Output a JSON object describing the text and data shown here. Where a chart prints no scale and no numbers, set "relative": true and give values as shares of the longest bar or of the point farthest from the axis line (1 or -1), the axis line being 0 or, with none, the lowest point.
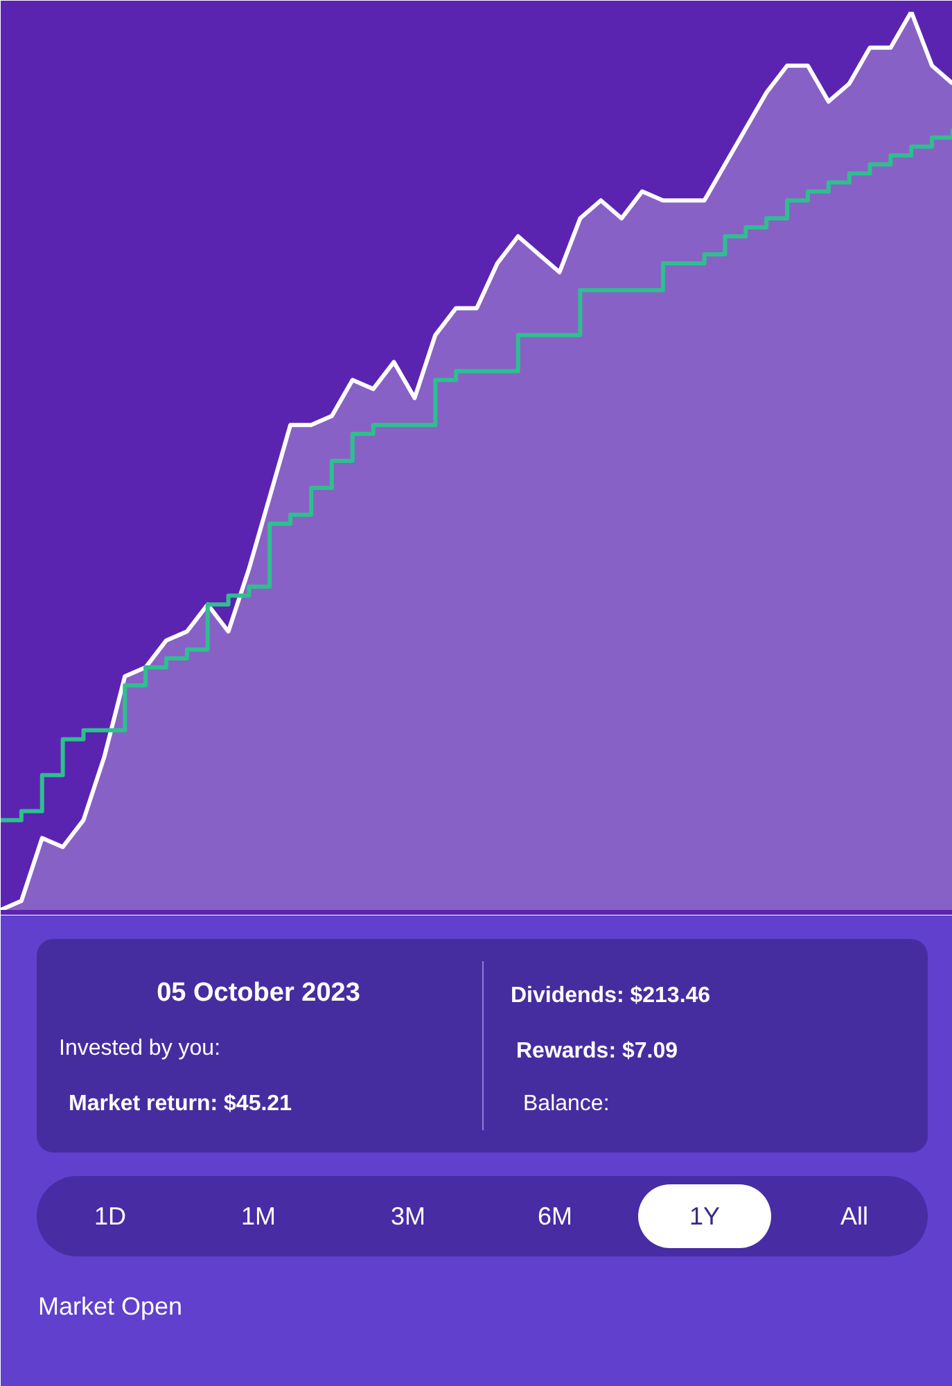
{
  "chart_data": {
    "type": "step",
    "relative": true,
    "categories": [
      null,
      null,
      null,
      null,
      null,
      null,
      null,
      null,
      null,
      null,
      null,
      null,
      null,
      null,
      null,
      null,
      null,
      null,
      null,
      null,
      null,
      null,
      null,
      null,
      null,
      null,
      null,
      null,
      null,
      null,
      null,
      null,
      null,
      null,
      null,
      null,
      null,
      null,
      null,
      null,
      null,
      null,
      null,
      null,
      null,
      null,
      null
    ],
    "series": [
      {
        "type": "area",
        "color": "#ffffff",
        "values": [
          0.0,
          0.01,
          0.08,
          0.07,
          0.1,
          0.17,
          0.26,
          0.27,
          0.3,
          0.31,
          0.34,
          0.31,
          0.38,
          0.46,
          0.54,
          0.54,
          0.55,
          0.59,
          0.58,
          0.61,
          0.57,
          0.64,
          0.67,
          0.67,
          0.72,
          0.75,
          0.73,
          0.71,
          0.77,
          0.79,
          0.77,
          0.8,
          0.79,
          0.79,
          0.79,
          0.83,
          0.87,
          0.91,
          0.94,
          0.94,
          0.9,
          0.92,
          0.96,
          0.96,
          1.0,
          0.94,
          0.92
        ]
      },
      {
        "color": "#2fbf8f",
        "values": [
          0.1,
          0.11,
          0.15,
          0.19,
          0.2,
          0.2,
          0.25,
          0.27,
          0.28,
          0.29,
          0.34,
          0.35,
          0.36,
          0.43,
          0.44,
          0.47,
          0.5,
          0.53,
          0.54,
          0.54,
          0.54,
          0.59,
          0.6,
          0.6,
          0.6,
          0.64,
          0.64,
          0.64,
          0.69,
          0.69,
          0.69,
          0.69,
          0.72,
          0.72,
          0.73,
          0.75,
          0.76,
          0.77,
          0.79,
          0.8,
          0.81,
          0.82,
          0.83,
          0.84,
          0.85,
          0.86,
          0.87
        ]
      }
    ],
    "annotations": [
      "05 October 2023",
      "Invested by you:",
      "Market return: $45.21",
      "Dividends: $213.46",
      "Rewards: $7.09",
      "Balance:",
      "1D",
      "1M",
      "3M",
      "6M",
      "1Y",
      "All",
      "Market Open"
    ]
  }
}
